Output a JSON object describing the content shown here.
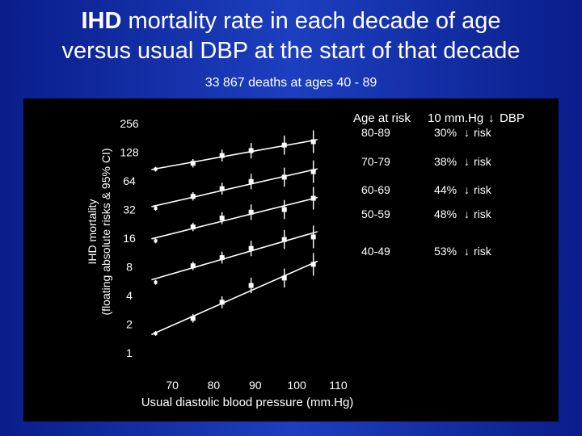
{
  "title": {
    "line1_bold": "IHD",
    "line1_rest": " mortality rate in each decade of age",
    "line2": "versus usual DBP at the start of that decade"
  },
  "subtitle": "33 867 deaths at ages 40 - 89",
  "colors": {
    "background": "#1c3fc0",
    "panel": "#000000",
    "foreground": "#ffffff"
  },
  "chart_data": {
    "type": "scatter",
    "title": "",
    "xlabel": "Usual diastolic blood pressure (mm.Hg)",
    "ylabel_line1": "IHD mortality",
    "ylabel_line2": "(floating absolute risks & 95% CI)",
    "y_scale": "log2",
    "x_ticks": [
      "70",
      "80",
      "90",
      "100",
      "110"
    ],
    "x_tick_values": [
      70,
      80,
      90,
      100,
      110
    ],
    "y_ticks": [
      "256",
      "128",
      "64",
      "32",
      "16",
      "8",
      "4",
      "2",
      "1"
    ],
    "y_tick_values": [
      256,
      128,
      64,
      32,
      16,
      8,
      4,
      2,
      1
    ],
    "xlim": [
      62,
      114
    ],
    "ylim": [
      0.8,
      300
    ],
    "grid": false,
    "legend": {
      "header_age": "Age at risk",
      "header_dbp": "10 mm.Hg",
      "header_arrow": "↓",
      "header_dbp2": "DBP",
      "rows": [
        {
          "age": "80-89",
          "pct": "30%",
          "arrow": "↓",
          "word": "risk"
        },
        {
          "age": "70-79",
          "pct": "38%",
          "arrow": "↓",
          "word": "risk"
        },
        {
          "age": "60-69",
          "pct": "44%",
          "arrow": "↓",
          "word": "risk"
        },
        {
          "age": "50-59",
          "pct": "48%",
          "arrow": "↓",
          "word": "risk"
        },
        {
          "age": "40-49",
          "pct": "53%",
          "arrow": "↓",
          "word": "risk"
        }
      ]
    },
    "series": [
      {
        "age_group": "80-89",
        "points": [
          {
            "x": 66,
            "y": 85
          },
          {
            "x": 75,
            "y": 98
          },
          {
            "x": 82,
            "y": 118
          },
          {
            "x": 89,
            "y": 133
          },
          {
            "x": 97,
            "y": 152
          },
          {
            "x": 104,
            "y": 165
          }
        ]
      },
      {
        "age_group": "70-79",
        "points": [
          {
            "x": 66,
            "y": 33
          },
          {
            "x": 75,
            "y": 44
          },
          {
            "x": 82,
            "y": 53
          },
          {
            "x": 89,
            "y": 63
          },
          {
            "x": 97,
            "y": 70
          },
          {
            "x": 104,
            "y": 80
          }
        ]
      },
      {
        "age_group": "60-69",
        "points": [
          {
            "x": 66,
            "y": 15
          },
          {
            "x": 75,
            "y": 21
          },
          {
            "x": 82,
            "y": 26
          },
          {
            "x": 89,
            "y": 30
          },
          {
            "x": 97,
            "y": 32
          },
          {
            "x": 104,
            "y": 42
          }
        ]
      },
      {
        "age_group": "50-59",
        "points": [
          {
            "x": 66,
            "y": 5.5
          },
          {
            "x": 75,
            "y": 8.2
          },
          {
            "x": 82,
            "y": 10
          },
          {
            "x": 89,
            "y": 12.5
          },
          {
            "x": 97,
            "y": 15.5
          },
          {
            "x": 104,
            "y": 16.5
          }
        ]
      },
      {
        "age_group": "40-49",
        "points": [
          {
            "x": 66,
            "y": 1.6
          },
          {
            "x": 75,
            "y": 2.3
          },
          {
            "x": 82,
            "y": 3.4
          },
          {
            "x": 89,
            "y": 5.1
          },
          {
            "x": 97,
            "y": 6.1
          },
          {
            "x": 104,
            "y": 8.5
          }
        ]
      }
    ]
  }
}
